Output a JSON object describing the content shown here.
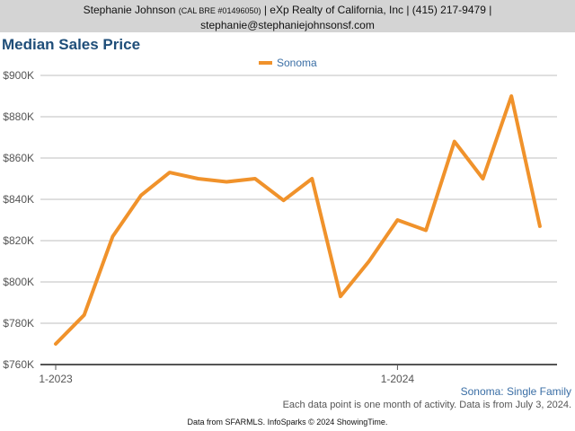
{
  "header": {
    "agent_name": "Stephanie Johnson",
    "license": "(CAL BRE #01496050)",
    "brokerage": "| eXp Realty of California, Inc | (415) 217-9479 |",
    "email": "stephanie@stephaniejohnsonsf.com"
  },
  "footer": {
    "series_note": "Sonoma: Single Family",
    "activity_note": "Each data point is one month of activity. Data is from July 3, 2024.",
    "source_note": "Data from SFARMLS. InfoSparks © 2024 ShowingTime."
  },
  "colors": {
    "line": "#f0922b",
    "grid": "#bfbfbf",
    "axis": "#555555",
    "title": "#1f4e79"
  },
  "chart_data": {
    "type": "line",
    "title": "Median Sales Price",
    "xlabel": "",
    "ylabel": "",
    "ylim": [
      760000,
      900000
    ],
    "yticks": [
      760000,
      780000,
      800000,
      820000,
      840000,
      860000,
      880000,
      900000
    ],
    "ytick_labels": [
      "$760K",
      "$780K",
      "$800K",
      "$820K",
      "$840K",
      "$860K",
      "$880K",
      "$900K"
    ],
    "x": [
      "2023-01",
      "2023-02",
      "2023-03",
      "2023-04",
      "2023-05",
      "2023-06",
      "2023-07",
      "2023-08",
      "2023-09",
      "2023-10",
      "2023-11",
      "2023-12",
      "2024-01",
      "2024-02",
      "2024-03",
      "2024-04",
      "2024-05",
      "2024-06"
    ],
    "xticks": [
      "2023-01",
      "2024-01"
    ],
    "xtick_labels": [
      "1-2023",
      "1-2024"
    ],
    "legend_position": "top-center",
    "grid": true,
    "series": [
      {
        "name": "Sonoma",
        "values": [
          770000,
          784000,
          822000,
          842000,
          853000,
          850000,
          848500,
          850000,
          839500,
          850000,
          793000,
          810000,
          830000,
          825000,
          868000,
          850000,
          890000,
          827000
        ]
      }
    ]
  }
}
